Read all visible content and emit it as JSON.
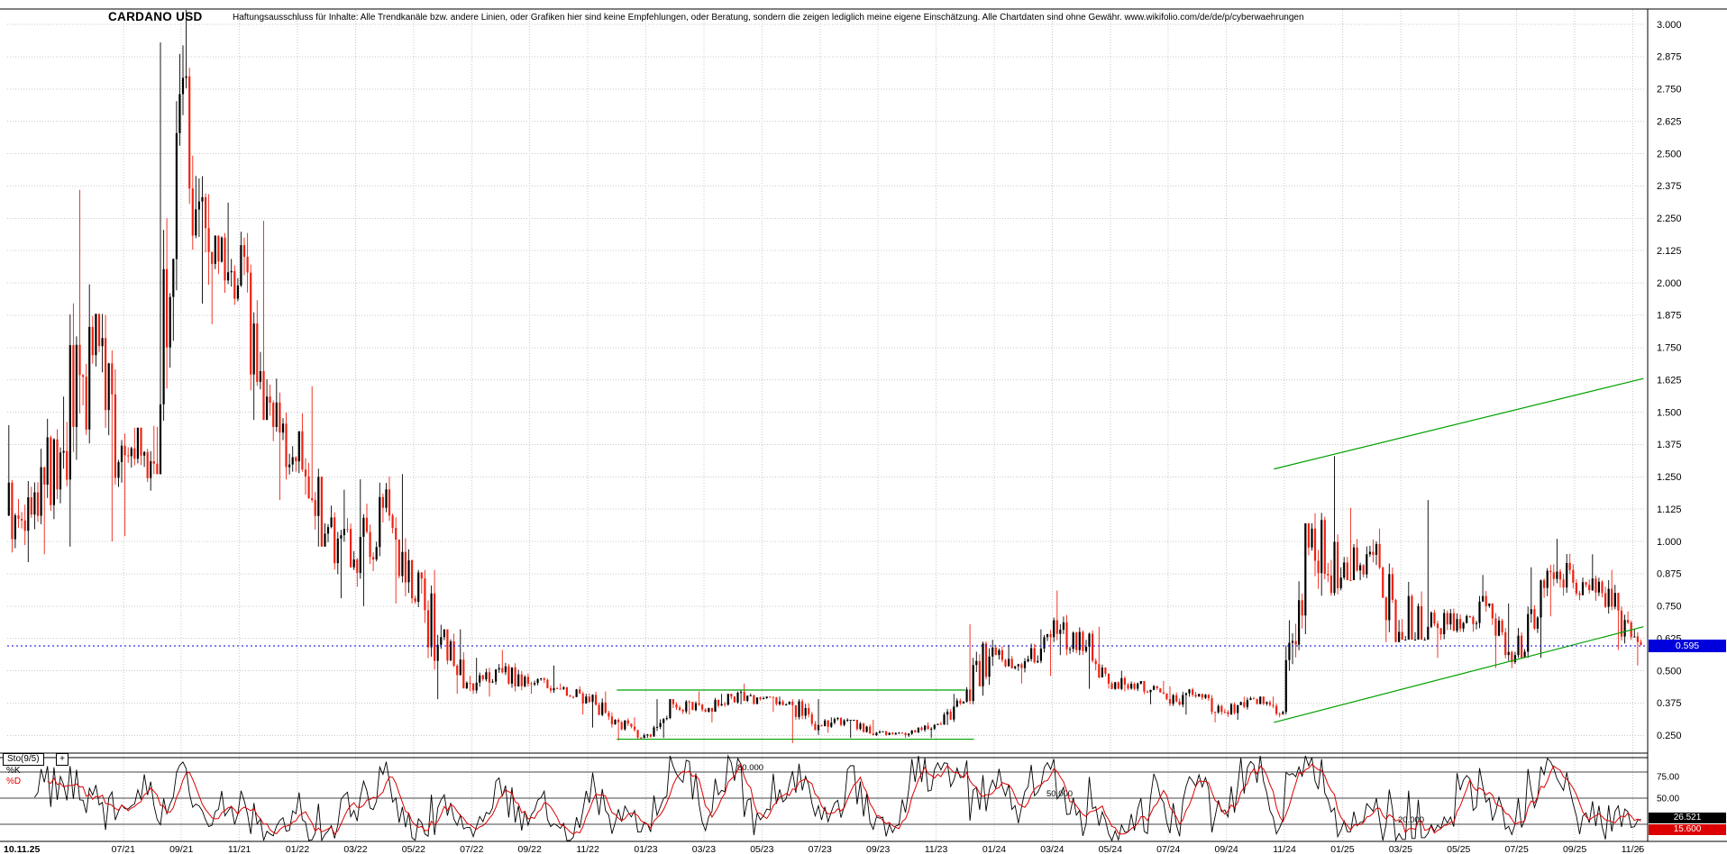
{
  "header": {
    "disclaimer": "Haftungsausschluss für Inhalte: Alle Trendkanäle bzw. andere Linien, oder Grafiken hier sind keine Empfehlungen, oder Beratung, sondern die zeigen lediglich meine eigene Einschätzung. Alle Chartdaten sind ohne Gewähr.  www.wikifolio.com/de/de/p/cyberwaehrungen"
  },
  "controls": {
    "zoom_out_label": "-"
  },
  "colors": {
    "up": "#000000",
    "down": "#ee2211",
    "grid": "#c9c9c9",
    "axis": "#000000",
    "trend_green": "#00a000",
    "price_marker_bg": "#0000dd",
    "k_line": "#000000",
    "d_line": "#dd0000"
  },
  "chart_data": {
    "type": "candlestick",
    "title": "CARDANO USD",
    "start_month": "2021-03",
    "end_date": "2025-11-10",
    "last_date_label": "10.11.25",
    "last_price": 0.595,
    "last_price_label": "0.595",
    "y_tick_labels": [
      "3.000",
      "2.875",
      "2.750",
      "2.625",
      "2.500",
      "2.375",
      "2.250",
      "2.125",
      "2.000",
      "1.875",
      "1.750",
      "1.625",
      "1.500",
      "1.375",
      "1.250",
      "1.125",
      "1.000",
      "0.875",
      "0.750",
      "0.625",
      "0.500",
      "0.375",
      "0.250"
    ],
    "x_tick_labels": [
      "07/21",
      "09/21",
      "11/21",
      "01/22",
      "03/22",
      "05/22",
      "07/22",
      "09/22",
      "11/22",
      "01/23",
      "03/23",
      "05/23",
      "07/23",
      "09/23",
      "11/23",
      "01/24",
      "03/24",
      "05/24",
      "07/24",
      "09/24",
      "11/24",
      "01/25",
      "03/25",
      "05/25",
      "07/25",
      "09/25",
      "11/25"
    ],
    "y_range": [
      0.18,
      3.06
    ],
    "columns": [
      "month",
      "open",
      "high",
      "low",
      "close"
    ],
    "monthly_ohlc": [
      [
        "2021-03",
        1.1,
        1.45,
        0.92,
        1.19
      ],
      [
        "2021-04",
        1.19,
        1.56,
        0.95,
        1.35
      ],
      [
        "2021-05",
        1.35,
        2.36,
        0.98,
        1.72
      ],
      [
        "2021-06",
        1.72,
        1.88,
        1.0,
        1.37
      ],
      [
        "2021-07",
        1.37,
        1.44,
        1.02,
        1.31
      ],
      [
        "2021-08",
        1.31,
        2.93,
        1.26,
        2.73
      ],
      [
        "2021-09",
        2.73,
        3.09,
        1.92,
        2.12
      ],
      [
        "2021-10",
        2.12,
        2.31,
        1.84,
        1.99
      ],
      [
        "2021-11",
        1.99,
        2.24,
        1.47,
        1.56
      ],
      [
        "2021-12",
        1.56,
        1.63,
        1.16,
        1.31
      ],
      [
        "2022-01",
        1.31,
        1.6,
        0.98,
        1.03
      ],
      [
        "2022-02",
        1.03,
        1.2,
        0.78,
        0.93
      ],
      [
        "2022-03",
        0.93,
        1.24,
        0.75,
        1.13
      ],
      [
        "2022-04",
        1.13,
        1.26,
        0.76,
        0.78
      ],
      [
        "2022-05",
        0.78,
        0.89,
        0.39,
        0.63
      ],
      [
        "2022-06",
        0.63,
        0.66,
        0.41,
        0.45
      ],
      [
        "2022-07",
        0.45,
        0.55,
        0.4,
        0.51
      ],
      [
        "2022-08",
        0.51,
        0.58,
        0.42,
        0.45
      ],
      [
        "2022-09",
        0.45,
        0.52,
        0.41,
        0.43
      ],
      [
        "2022-10",
        0.43,
        0.45,
        0.33,
        0.4
      ],
      [
        "2022-11",
        0.4,
        0.42,
        0.28,
        0.31
      ],
      [
        "2022-12",
        0.31,
        0.32,
        0.23,
        0.25
      ],
      [
        "2023-01",
        0.25,
        0.39,
        0.24,
        0.37
      ],
      [
        "2023-02",
        0.37,
        0.42,
        0.33,
        0.35
      ],
      [
        "2023-03",
        0.35,
        0.41,
        0.3,
        0.4
      ],
      [
        "2023-04",
        0.4,
        0.45,
        0.37,
        0.39
      ],
      [
        "2023-05",
        0.39,
        0.4,
        0.34,
        0.38
      ],
      [
        "2023-06",
        0.38,
        0.39,
        0.22,
        0.29
      ],
      [
        "2023-07",
        0.29,
        0.32,
        0.26,
        0.31
      ],
      [
        "2023-08",
        0.31,
        0.31,
        0.24,
        0.26
      ],
      [
        "2023-09",
        0.26,
        0.27,
        0.24,
        0.25
      ],
      [
        "2023-10",
        0.25,
        0.3,
        0.24,
        0.29
      ],
      [
        "2023-11",
        0.29,
        0.41,
        0.29,
        0.38
      ],
      [
        "2023-12",
        0.38,
        0.68,
        0.37,
        0.59
      ],
      [
        "2024-01",
        0.59,
        0.6,
        0.45,
        0.51
      ],
      [
        "2024-02",
        0.51,
        0.66,
        0.48,
        0.63
      ],
      [
        "2024-03",
        0.63,
        0.81,
        0.56,
        0.65
      ],
      [
        "2024-04",
        0.65,
        0.67,
        0.43,
        0.45
      ],
      [
        "2024-05",
        0.45,
        0.5,
        0.42,
        0.45
      ],
      [
        "2024-06",
        0.45,
        0.46,
        0.37,
        0.39
      ],
      [
        "2024-07",
        0.39,
        0.44,
        0.33,
        0.4
      ],
      [
        "2024-08",
        0.4,
        0.41,
        0.3,
        0.34
      ],
      [
        "2024-09",
        0.34,
        0.4,
        0.31,
        0.39
      ],
      [
        "2024-10",
        0.39,
        0.4,
        0.32,
        0.34
      ],
      [
        "2024-11",
        0.34,
        1.07,
        0.33,
        1.05
      ],
      [
        "2024-12",
        1.05,
        1.33,
        0.79,
        0.86
      ],
      [
        "2025-01",
        0.86,
        1.13,
        0.85,
        0.96
      ],
      [
        "2025-02",
        0.96,
        1.05,
        0.61,
        0.65
      ],
      [
        "2025-03",
        0.65,
        1.16,
        0.62,
        0.67
      ],
      [
        "2025-04",
        0.67,
        0.74,
        0.55,
        0.7
      ],
      [
        "2025-05",
        0.7,
        0.87,
        0.65,
        0.75
      ],
      [
        "2025-06",
        0.75,
        0.76,
        0.51,
        0.56
      ],
      [
        "2025-07",
        0.56,
        0.9,
        0.55,
        0.82
      ],
      [
        "2025-08",
        0.82,
        1.01,
        0.71,
        0.84
      ],
      [
        "2025-09",
        0.84,
        0.95,
        0.77,
        0.8
      ],
      [
        "2025-10",
        0.8,
        0.89,
        0.58,
        0.63
      ],
      [
        "2025-11",
        0.63,
        0.66,
        0.52,
        0.6
      ]
    ],
    "overlays": {
      "current_price_line": 0.595,
      "support_lines": [
        {
          "price": 0.425,
          "from": "2022-12-01",
          "to": "2023-12-01"
        },
        {
          "price": 0.235,
          "from": "2022-12-01",
          "to": "2023-12-10"
        }
      ],
      "trend_channel": [
        {
          "from": {
            "date": "2024-10-20",
            "price": 1.28
          },
          "to": {
            "date": "2025-11-12",
            "price": 1.63
          }
        },
        {
          "from": {
            "date": "2024-10-20",
            "price": 0.3
          },
          "to": {
            "date": "2025-11-12",
            "price": 0.67
          }
        }
      ]
    },
    "indicator": {
      "name": "Sto(9/5)",
      "expand_label": "+",
      "type": "stochastic",
      "k_period": 9,
      "d_period": 5,
      "k_label": "%K",
      "d_label": "%D",
      "levels": [
        80,
        50,
        20
      ],
      "level_labels": [
        "80.000",
        "50.000",
        "20.000"
      ],
      "right_tick_labels": [
        "75.00",
        "50.00"
      ],
      "right_tick_values": [
        75,
        50
      ],
      "k_current": 26.521,
      "d_current": 15.6,
      "k_value_label": "26.521",
      "d_value_label": "15.600"
    }
  }
}
